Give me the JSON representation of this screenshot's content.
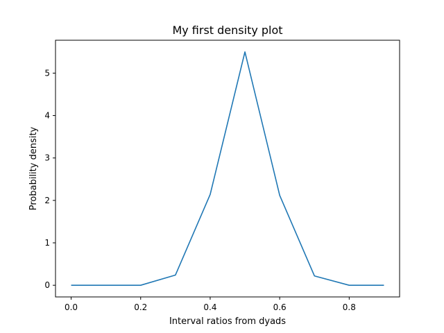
{
  "chart_data": {
    "type": "line",
    "title": "My first density plot",
    "xlabel": "Interval ratios from dyads",
    "ylabel": "Probability density",
    "xlim": [
      -0.045,
      0.945
    ],
    "ylim": [
      -0.275,
      5.775
    ],
    "x_ticks": [
      0.0,
      0.2,
      0.4,
      0.6,
      0.8
    ],
    "x_tick_labels": [
      "0.0",
      "0.2",
      "0.4",
      "0.6",
      "0.8"
    ],
    "y_ticks": [
      0,
      1,
      2,
      3,
      4,
      5
    ],
    "y_tick_labels": [
      "0",
      "1",
      "2",
      "3",
      "4",
      "5"
    ],
    "grid": false,
    "series": [
      {
        "color": "#1f77b4",
        "x": [
          0.0,
          0.1,
          0.2,
          0.3,
          0.4,
          0.5,
          0.6,
          0.7,
          0.8,
          0.9
        ],
        "y": [
          0.0,
          0.0,
          0.0,
          0.24,
          2.14,
          5.5,
          2.12,
          0.22,
          0.0,
          0.0
        ]
      }
    ]
  }
}
